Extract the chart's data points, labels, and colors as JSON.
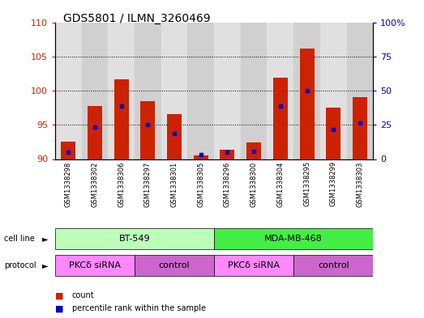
{
  "title": "GDS5801 / ILMN_3260469",
  "samples": [
    "GSM1338298",
    "GSM1338302",
    "GSM1338306",
    "GSM1338297",
    "GSM1338301",
    "GSM1338305",
    "GSM1338296",
    "GSM1338300",
    "GSM1338304",
    "GSM1338295",
    "GSM1338299",
    "GSM1338303"
  ],
  "bar_tops": [
    92.5,
    97.7,
    101.7,
    98.5,
    96.6,
    90.5,
    91.4,
    92.4,
    101.9,
    106.2,
    97.5,
    99.0
  ],
  "blue_marks": [
    91.0,
    94.7,
    97.7,
    95.0,
    93.7,
    90.7,
    91.0,
    91.1,
    97.7,
    100.0,
    94.3,
    95.3
  ],
  "ylim": [
    90,
    110
  ],
  "yticks_left": [
    90,
    95,
    100,
    105,
    110
  ],
  "yticks_right": [
    0,
    25,
    50,
    75,
    100
  ],
  "bar_color": "#cc2200",
  "blue_color": "#0000cc",
  "bar_width": 0.55,
  "dotted_yticks": [
    95,
    100,
    105
  ],
  "bg_colors_even": "#e0e0e0",
  "bg_colors_odd": "#d0d0d0",
  "cell_line_color_bt549": "#bbffbb",
  "cell_line_color_mda": "#44ee44",
  "protocol_color_pkc": "#ff88ff",
  "protocol_color_ctrl": "#cc66cc",
  "legend_count_color": "#cc2200",
  "legend_blue_color": "#0000cc"
}
